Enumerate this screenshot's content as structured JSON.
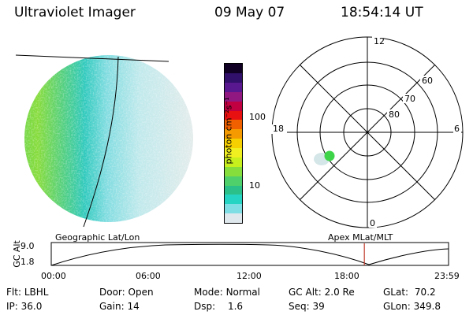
{
  "header": {
    "instrument": "Ultraviolet Imager",
    "date": "09 May 07",
    "time": "18:54:14 UT"
  },
  "colorbar": {
    "unit_label": "photon cm⁻²s⁻¹",
    "tick_100": "100",
    "tick_10": "10",
    "colors": [
      "#dfe8ec",
      "#7fdde4",
      "#26d4c4",
      "#2bbf8a",
      "#4fd06a",
      "#86de3c",
      "#c8f01c",
      "#f0f020",
      "#f6d000",
      "#f59a00",
      "#f06000",
      "#e81010",
      "#c00040",
      "#901880",
      "#5a1890",
      "#30106a",
      "#100024"
    ]
  },
  "polar": {
    "mlt_12": "12",
    "mlt_18": "18",
    "mlt_6": "6",
    "mlt_0": "0",
    "lat_60": "60",
    "lat_70": "70",
    "lat_80": "80"
  },
  "timeline": {
    "left_label": "Geographic Lat/Lon",
    "right_label": "Apex MLat/MLT",
    "axis_title": "GC Alt",
    "y_max": "9.0",
    "y_min": "1.8",
    "x_ticks": [
      "00:00",
      "06:00",
      "12:00",
      "18:00",
      "23:59"
    ],
    "current_time_marker": "18:54",
    "marker_color": "#c0392b"
  },
  "info": {
    "filter_label": "Flt:",
    "filter_value": "LBHL",
    "ip_label": "IP:",
    "ip_value": "36.0",
    "door_label": "Door:",
    "door_value": "Open",
    "gain_label": "Gain:",
    "gain_value": "14",
    "mode_label": "Mode:",
    "mode_value": "Normal",
    "dsp_label": "Dsp:",
    "dsp_value": "1.6",
    "gcalt_label": "GC Alt:",
    "gcalt_value": "2.0 Re",
    "seq_label": "Seq:",
    "seq_value": "39",
    "glat_label": "GLat:",
    "glat_value": "70.2",
    "glon_label": "GLon:",
    "glon_value": "349.8"
  }
}
